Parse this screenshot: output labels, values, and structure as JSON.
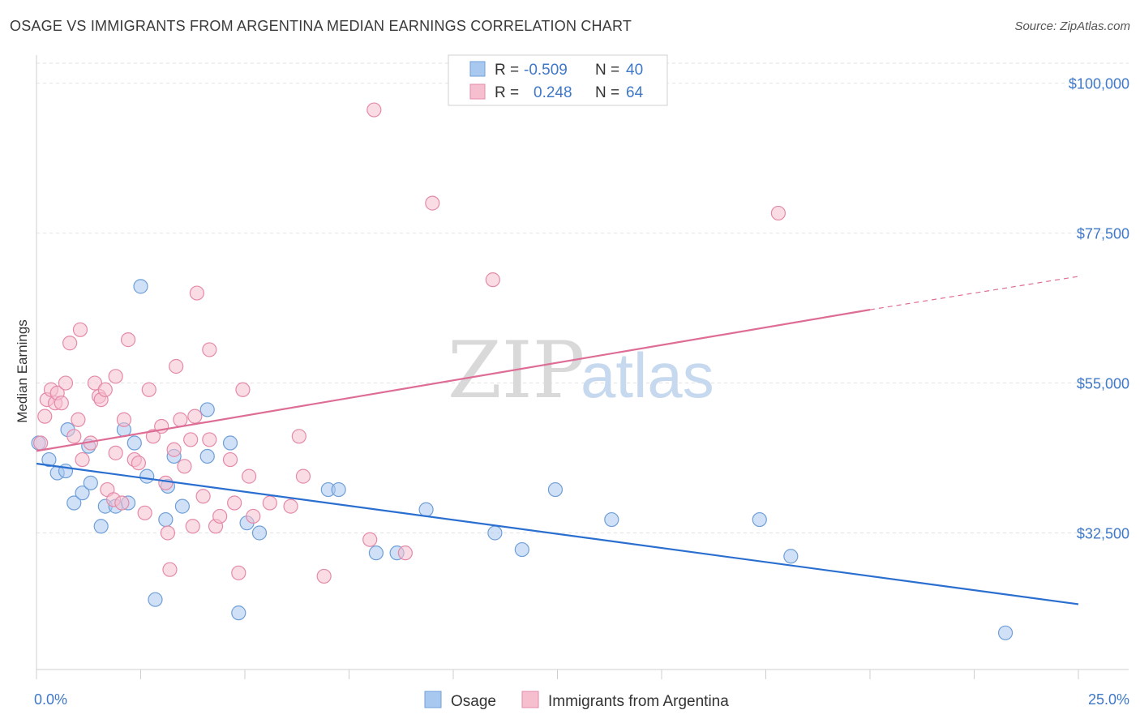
{
  "title": "OSAGE VS IMMIGRANTS FROM ARGENTINA MEDIAN EARNINGS CORRELATION CHART",
  "source": "Source: ZipAtlas.com",
  "watermark": {
    "zip": "ZIP",
    "atlas": "atlas"
  },
  "legend_top": [
    {
      "r_label": "R =",
      "r_value": "-0.509",
      "n_label": "N =",
      "n_value": "40",
      "color": "#a9c8f0",
      "stroke": "#6f9fd8"
    },
    {
      "r_label": "R =",
      "r_value": "0.248",
      "n_label": "N =",
      "n_value": "64",
      "color": "#f6bfd0",
      "stroke": "#e48aa8"
    }
  ],
  "legend_bottom": [
    {
      "label": "Osage",
      "color": "#a9c8f0",
      "stroke": "#6f9fd8"
    },
    {
      "label": "Immigrants from Argentina",
      "color": "#f6bfd0",
      "stroke": "#e48aa8"
    }
  ],
  "chart_data": {
    "type": "scatter",
    "title": "OSAGE VS IMMIGRANTS FROM ARGENTINA MEDIAN EARNINGS CORRELATION CHART",
    "xlabel": "",
    "ylabel": "Median Earnings",
    "xlim": [
      0,
      25
    ],
    "ylim": [
      12000,
      103000
    ],
    "x_tick_labels": [
      "0.0%",
      "25.0%"
    ],
    "y_ticks": [
      32500,
      55000,
      77500,
      100000
    ],
    "y_tick_labels": [
      "$32,500",
      "$55,000",
      "$77,500",
      "$100,000"
    ],
    "grid": true,
    "legend_position": "top-center",
    "series": [
      {
        "name": "Osage",
        "color": "#6f9fd8",
        "fill": "#a9c8f0",
        "line_color": "#2a6fd0",
        "trend": {
          "x0": 0,
          "y0": 42900,
          "x1": 25,
          "y1": 21800,
          "dashed_from": null
        },
        "points": [
          [
            0.05,
            46000
          ],
          [
            0.3,
            43500
          ],
          [
            0.5,
            41500
          ],
          [
            0.7,
            41800
          ],
          [
            0.75,
            48000
          ],
          [
            0.9,
            37000
          ],
          [
            1.1,
            38500
          ],
          [
            1.3,
            40000
          ],
          [
            1.25,
            45500
          ],
          [
            1.55,
            33500
          ],
          [
            1.65,
            36500
          ],
          [
            1.9,
            36500
          ],
          [
            2.1,
            48000
          ],
          [
            2.2,
            37000
          ],
          [
            2.35,
            46000
          ],
          [
            2.5,
            69500
          ],
          [
            2.65,
            41000
          ],
          [
            2.85,
            22500
          ],
          [
            3.1,
            34500
          ],
          [
            3.15,
            39500
          ],
          [
            3.3,
            44000
          ],
          [
            3.5,
            36500
          ],
          [
            4.1,
            44000
          ],
          [
            4.1,
            51000
          ],
          [
            4.65,
            46000
          ],
          [
            4.85,
            20500
          ],
          [
            5.05,
            34000
          ],
          [
            5.35,
            32500
          ],
          [
            7.0,
            39000
          ],
          [
            7.25,
            39000
          ],
          [
            8.15,
            29500
          ],
          [
            8.65,
            29500
          ],
          [
            9.35,
            36000
          ],
          [
            11.0,
            32500
          ],
          [
            11.65,
            30000
          ],
          [
            12.45,
            39000
          ],
          [
            13.8,
            34500
          ],
          [
            17.35,
            34500
          ],
          [
            18.1,
            29000
          ],
          [
            23.25,
            17500
          ]
        ]
      },
      {
        "name": "Immigrants from Argentina",
        "color": "#e48aa8",
        "fill": "#f6bfd0",
        "line_color": "#de6d95",
        "trend": {
          "x0": 0,
          "y0": 44800,
          "x1": 20,
          "y1": 66000,
          "dashed_from": 20,
          "x2": 25,
          "y2": 71000
        },
        "points": [
          [
            0.1,
            46000
          ],
          [
            0.2,
            50000
          ],
          [
            0.25,
            52500
          ],
          [
            0.35,
            54000
          ],
          [
            0.45,
            52000
          ],
          [
            0.5,
            53500
          ],
          [
            0.6,
            52000
          ],
          [
            0.7,
            55000
          ],
          [
            0.8,
            61000
          ],
          [
            0.9,
            47000
          ],
          [
            1.0,
            49500
          ],
          [
            1.05,
            63000
          ],
          [
            1.1,
            43500
          ],
          [
            1.3,
            46000
          ],
          [
            1.4,
            55000
          ],
          [
            1.5,
            53000
          ],
          [
            1.55,
            52500
          ],
          [
            1.65,
            54000
          ],
          [
            1.7,
            39000
          ],
          [
            1.85,
            37500
          ],
          [
            1.9,
            44500
          ],
          [
            1.9,
            56000
          ],
          [
            2.05,
            37000
          ],
          [
            2.1,
            49500
          ],
          [
            2.2,
            61500
          ],
          [
            2.35,
            43500
          ],
          [
            2.45,
            43000
          ],
          [
            2.6,
            35500
          ],
          [
            2.7,
            54000
          ],
          [
            2.8,
            47000
          ],
          [
            3.0,
            48500
          ],
          [
            3.1,
            40000
          ],
          [
            3.15,
            32500
          ],
          [
            3.2,
            27000
          ],
          [
            3.3,
            45000
          ],
          [
            3.35,
            57500
          ],
          [
            3.45,
            49500
          ],
          [
            3.55,
            42500
          ],
          [
            3.7,
            46500
          ],
          [
            3.75,
            33500
          ],
          [
            3.8,
            50000
          ],
          [
            3.85,
            68500
          ],
          [
            4.0,
            38000
          ],
          [
            4.15,
            60000
          ],
          [
            4.15,
            46500
          ],
          [
            4.3,
            33500
          ],
          [
            4.4,
            35000
          ],
          [
            4.65,
            43500
          ],
          [
            4.75,
            37000
          ],
          [
            4.85,
            26500
          ],
          [
            4.95,
            54000
          ],
          [
            5.1,
            41000
          ],
          [
            5.2,
            35000
          ],
          [
            5.6,
            37000
          ],
          [
            6.1,
            36500
          ],
          [
            6.3,
            47000
          ],
          [
            6.4,
            41000
          ],
          [
            6.9,
            26000
          ],
          [
            8.0,
            31500
          ],
          [
            8.1,
            96000
          ],
          [
            8.85,
            29500
          ],
          [
            9.5,
            82000
          ],
          [
            10.95,
            70500
          ],
          [
            17.8,
            80500
          ]
        ]
      }
    ]
  }
}
